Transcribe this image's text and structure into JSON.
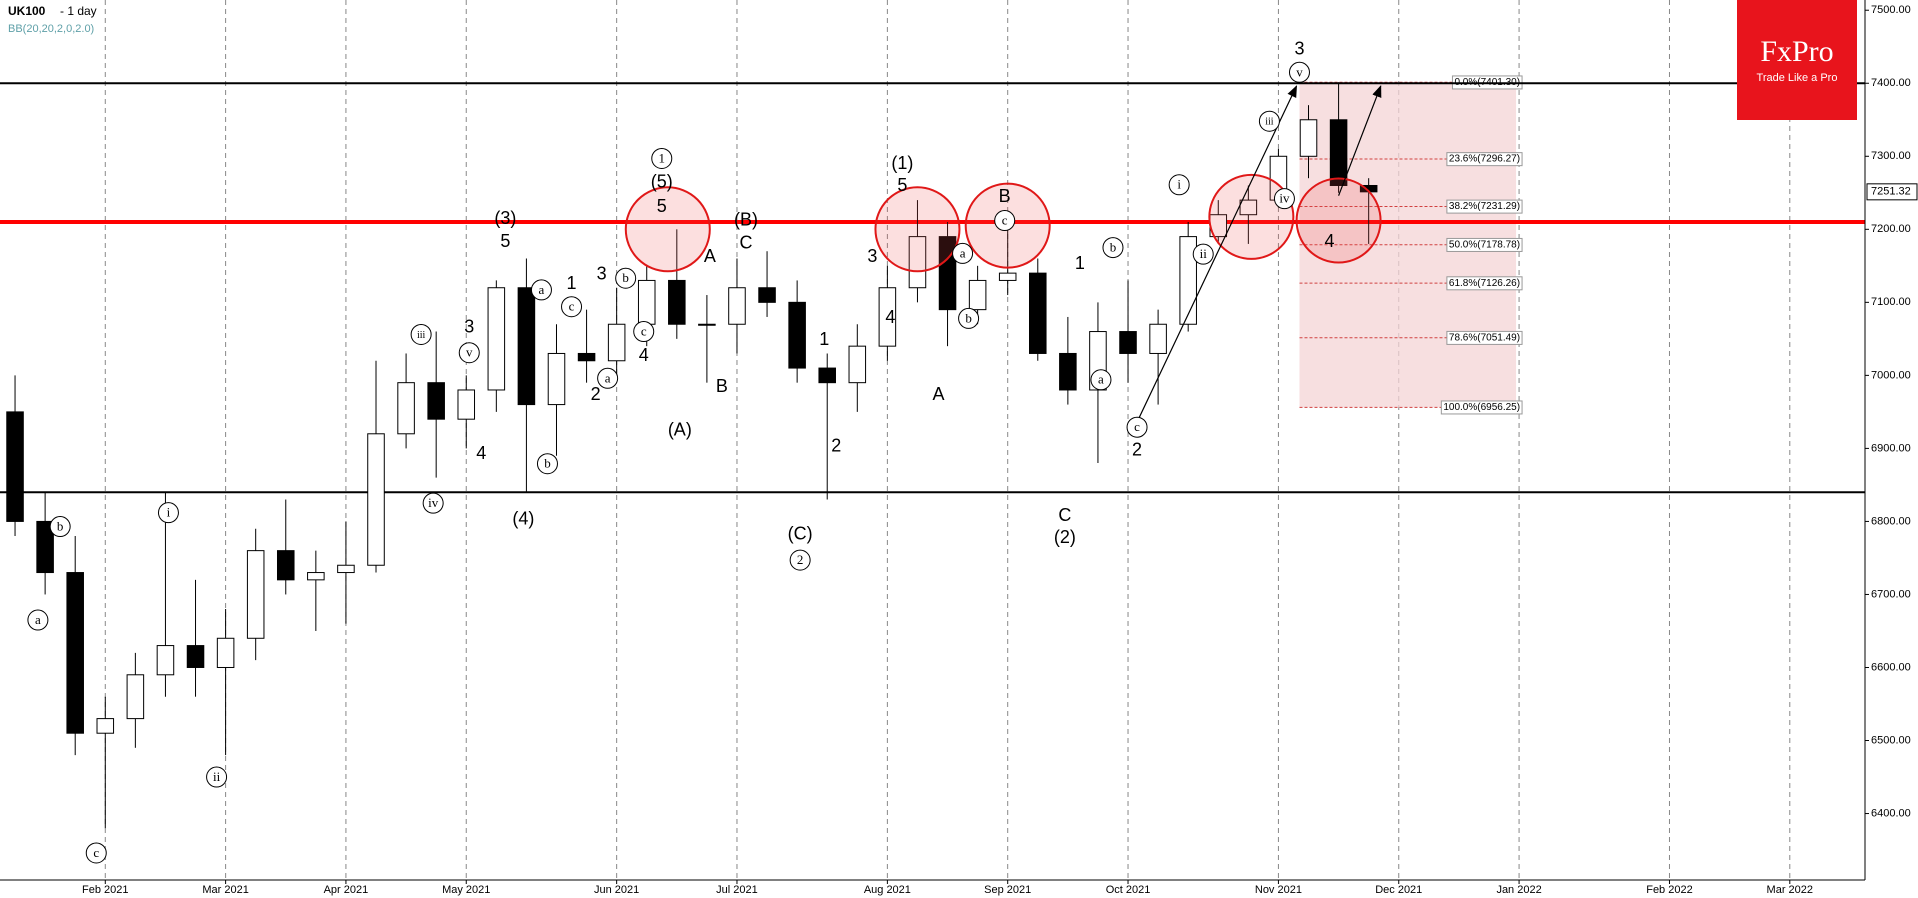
{
  "chart_data": {
    "type": "candlestick",
    "title": "UK100",
    "subtitle": "- 1 day",
    "indicator": "BB(20,20,2,0,2.0)",
    "logo": {
      "brand": "FxPro",
      "tagline": "Trade Like a Pro",
      "color": "#e8141c"
    },
    "categories": [
      null,
      null,
      null,
      "Feb 2021",
      null,
      null,
      null,
      "Mar 2021",
      null,
      null,
      null,
      "Apr 2021",
      null,
      null,
      null,
      "May 2021",
      null,
      null,
      null,
      null,
      "Jun 2021",
      null,
      null,
      null,
      "Jul 2021",
      null,
      null,
      null,
      null,
      "Aug 2021",
      null,
      null,
      null,
      "Sep 2021",
      null,
      null,
      null,
      "Oct 2021",
      null,
      null,
      null,
      null,
      "Nov 2021",
      null,
      null,
      null,
      "Dec 2021",
      null,
      null,
      null,
      "Jan 2022",
      null,
      null,
      null,
      null,
      "Feb 2022",
      null,
      null,
      null,
      "Mar 2022",
      null,
      null
    ],
    "open": [
      6950,
      6800,
      6730,
      6510,
      6530,
      6590,
      6630,
      6600,
      6640,
      6760,
      6720,
      6730,
      6740,
      6920,
      6990,
      6940,
      6980,
      7120,
      6960,
      7030,
      7020,
      7070,
      7130,
      7070,
      7070,
      7120,
      7100,
      7010,
      6990,
      7040,
      7120,
      7190,
      7090,
      7130,
      7140,
      7030,
      6980,
      7060,
      7030,
      7070,
      7190,
      7220,
      7240,
      7300,
      7350,
      7260,
      null,
      null,
      null,
      null,
      null,
      null,
      null,
      null,
      null,
      null,
      null,
      null,
      null,
      null,
      null,
      null
    ],
    "high": [
      7000,
      6840,
      6780,
      6560,
      6620,
      6840,
      6720,
      6680,
      6790,
      6830,
      6760,
      6800,
      7020,
      7030,
      7060,
      7000,
      7130,
      7160,
      7070,
      7090,
      7120,
      7150,
      7200,
      7110,
      7160,
      7170,
      7130,
      7030,
      7070,
      7150,
      7240,
      7210,
      7150,
      7210,
      7160,
      7080,
      7100,
      7130,
      7090,
      7210,
      7240,
      7260,
      7310,
      7370,
      7401.3,
      7270,
      null,
      null,
      null,
      null,
      null,
      null,
      null,
      null,
      null,
      null,
      null,
      null,
      null,
      null,
      null,
      null
    ],
    "low": [
      6780,
      6700,
      6480,
      6380,
      6490,
      6560,
      6560,
      6480,
      6610,
      6700,
      6650,
      6660,
      6730,
      6900,
      6860,
      6900,
      6950,
      6840,
      6890,
      6990,
      7000,
      7040,
      7050,
      6990,
      7030,
      7080,
      6990,
      6830,
      6950,
      7020,
      7100,
      7040,
      7070,
      7110,
      7020,
      6960,
      6880,
      6990,
      6960,
      7060,
      7180,
      7180,
      7230,
      7270,
      7250,
      7180,
      null,
      null,
      null,
      null,
      null,
      null,
      null,
      null,
      null,
      null,
      null,
      null,
      null,
      null,
      null,
      null
    ],
    "close": [
      6800,
      6730,
      6510,
      6530,
      6590,
      6630,
      6600,
      6640,
      6760,
      6720,
      6730,
      6740,
      6920,
      6990,
      6940,
      6980,
      7120,
      6960,
      7030,
      7020,
      7070,
      7130,
      7070,
      7070,
      7120,
      7100,
      7010,
      6990,
      7040,
      7120,
      7190,
      7090,
      7130,
      7140,
      7030,
      6980,
      7060,
      7030,
      7070,
      7190,
      7220,
      7240,
      7300,
      7350,
      7260,
      7251.32,
      null,
      null,
      null,
      null,
      null,
      null,
      null,
      null,
      null,
      null,
      null,
      null,
      null,
      null,
      null,
      null
    ],
    "up_color": "#ffffff",
    "down_color": "#000000",
    "ylim": [
      6309,
      7514
    ],
    "yticks": [
      {
        "value": 6400,
        "label": "6400.00"
      },
      {
        "value": 6500,
        "label": "6500.00"
      },
      {
        "value": 6600,
        "label": "6600.00"
      },
      {
        "value": 6700,
        "label": "6700.00"
      },
      {
        "value": 6800,
        "label": "6800.00"
      },
      {
        "value": 6900,
        "label": "6900.00"
      },
      {
        "value": 7000,
        "label": "7000.00"
      },
      {
        "value": 7100,
        "label": "7100.00"
      },
      {
        "value": 7200,
        "label": "7200.00"
      },
      {
        "value": 7300,
        "label": "7300.00"
      },
      {
        "value": 7400,
        "label": "7400.00"
      },
      {
        "value": 7500,
        "label": "7500.00"
      }
    ],
    "last_price": {
      "value": 7251.32,
      "label": "7251.32"
    },
    "hlines": [
      {
        "value": 7400,
        "color": "#000000"
      },
      {
        "value": 7210,
        "color": "#ff0000"
      },
      {
        "value": 6840,
        "color": "#000000"
      }
    ],
    "fib_range": [
      43.2,
      50.4
    ],
    "fib_levels": [
      {
        "label": "0.0%(7401.30)",
        "value": 7401.3
      },
      {
        "label": "23.6%(7296.27)",
        "value": 7296.27
      },
      {
        "label": "38.2%(7231.29)",
        "value": 7231.29
      },
      {
        "label": "50.0%(7178.78)",
        "value": 7178.78
      },
      {
        "label": "61.8%(7126.26)",
        "value": 7126.26
      },
      {
        "label": "78.6%(7051.49)",
        "value": 7051.49
      },
      {
        "label": "100.0%(6956.25)",
        "value": 6956.25
      }
    ],
    "highlights": [
      {
        "x": 22.2,
        "y": 7200
      },
      {
        "x": 30.5,
        "y": 7200
      },
      {
        "x": 33.5,
        "y": 7205
      },
      {
        "x": 41.6,
        "y": 7217
      },
      {
        "x": 44.5,
        "y": 7212
      }
    ],
    "arrows": [
      {
        "x": [
          37.8,
          43.1
        ],
        "y": [
          6936,
          7396
        ]
      },
      {
        "x": [
          44.5,
          45.9
        ],
        "y": [
          7246,
          7396
        ]
      }
    ],
    "annotations": [
      {
        "text": "a",
        "circled": true,
        "x": 1.26,
        "y": 6665
      },
      {
        "text": "b",
        "circled": true,
        "x": 2.0,
        "y": 6793
      },
      {
        "text": "c",
        "circled": true,
        "x": 3.2,
        "y": 6346
      },
      {
        "text": "i",
        "circled": true,
        "x": 5.6,
        "y": 6812
      },
      {
        "text": "ii",
        "circled": true,
        "x": 7.2,
        "y": 6450
      },
      {
        "text": "iii",
        "circled": true,
        "x": 14.0,
        "y": 7056
      },
      {
        "text": "iv",
        "circled": true,
        "x": 14.4,
        "y": 6825
      },
      {
        "text": "v",
        "circled": true,
        "x": 15.6,
        "y": 7031
      },
      {
        "text": "3",
        "circled": false,
        "x": 15.6,
        "y": 7065
      },
      {
        "text": "4",
        "circled": false,
        "x": 16.0,
        "y": 6892
      },
      {
        "text": "(3)",
        "circled": false,
        "x": 16.8,
        "y": 7214
      },
      {
        "text": "5",
        "circled": false,
        "x": 16.8,
        "y": 7182
      },
      {
        "text": "(4)",
        "circled": false,
        "x": 17.4,
        "y": 6802
      },
      {
        "text": "a",
        "circled": true,
        "x": 18.0,
        "y": 7117
      },
      {
        "text": "b",
        "circled": true,
        "x": 18.2,
        "y": 6879
      },
      {
        "text": "c",
        "circled": true,
        "x": 19.0,
        "y": 7094
      },
      {
        "text": "1",
        "circled": false,
        "x": 19.0,
        "y": 7125
      },
      {
        "text": "2",
        "circled": false,
        "x": 19.8,
        "y": 6973
      },
      {
        "text": "3",
        "circled": false,
        "x": 20.0,
        "y": 7138
      },
      {
        "text": "a",
        "circled": true,
        "x": 20.2,
        "y": 6996
      },
      {
        "text": "b",
        "circled": true,
        "x": 20.8,
        "y": 7133
      },
      {
        "text": "4",
        "circled": false,
        "x": 21.4,
        "y": 7026
      },
      {
        "text": "c",
        "circled": true,
        "x": 21.4,
        "y": 7060
      },
      {
        "text": "1",
        "circled": true,
        "x": 22.0,
        "y": 7297
      },
      {
        "text": "(5)",
        "circled": false,
        "x": 22.0,
        "y": 7264
      },
      {
        "text": "5",
        "circled": false,
        "x": 22.0,
        "y": 7230
      },
      {
        "text": "(A)",
        "circled": false,
        "x": 22.6,
        "y": 6924
      },
      {
        "text": "A",
        "circled": false,
        "x": 23.6,
        "y": 7162
      },
      {
        "text": "B",
        "circled": false,
        "x": 24.0,
        "y": 6984
      },
      {
        "text": "(B)",
        "circled": false,
        "x": 24.8,
        "y": 7212
      },
      {
        "text": "C",
        "circled": false,
        "x": 24.8,
        "y": 7180
      },
      {
        "text": "(C)",
        "circled": false,
        "x": 26.6,
        "y": 6782
      },
      {
        "text": "2",
        "circled": true,
        "x": 26.6,
        "y": 6747
      },
      {
        "text": "1",
        "circled": false,
        "x": 27.4,
        "y": 7048
      },
      {
        "text": "2",
        "circled": false,
        "x": 27.8,
        "y": 6902
      },
      {
        "text": "3",
        "circled": false,
        "x": 29.0,
        "y": 7162
      },
      {
        "text": "4",
        "circled": false,
        "x": 29.6,
        "y": 7078
      },
      {
        "text": "(1)",
        "circled": false,
        "x": 30.0,
        "y": 7289
      },
      {
        "text": "5",
        "circled": false,
        "x": 30.0,
        "y": 7259
      },
      {
        "text": "A",
        "circled": false,
        "x": 31.2,
        "y": 6973
      },
      {
        "text": "a",
        "circled": true,
        "x": 32.0,
        "y": 7167
      },
      {
        "text": "b",
        "circled": true,
        "x": 32.2,
        "y": 7078
      },
      {
        "text": "B",
        "circled": false,
        "x": 33.4,
        "y": 7244
      },
      {
        "text": "c",
        "circled": true,
        "x": 33.4,
        "y": 7212
      },
      {
        "text": "1",
        "circled": false,
        "x": 35.9,
        "y": 7152
      },
      {
        "text": "C",
        "circled": false,
        "x": 35.4,
        "y": 6807
      },
      {
        "text": "(2)",
        "circled": false,
        "x": 35.4,
        "y": 6777
      },
      {
        "text": "b",
        "circled": true,
        "x": 37.0,
        "y": 7175
      },
      {
        "text": "a",
        "circled": true,
        "x": 36.6,
        "y": 6994
      },
      {
        "text": "c",
        "circled": true,
        "x": 37.8,
        "y": 6929
      },
      {
        "text": "2",
        "circled": false,
        "x": 37.8,
        "y": 6897
      },
      {
        "text": "i",
        "circled": true,
        "x": 39.2,
        "y": 7261
      },
      {
        "text": "ii",
        "circled": true,
        "x": 40.0,
        "y": 7166
      },
      {
        "text": "iii",
        "circled": true,
        "x": 42.2,
        "y": 7348
      },
      {
        "text": "iv",
        "circled": true,
        "x": 42.7,
        "y": 7242
      },
      {
        "text": "v",
        "circled": true,
        "x": 43.2,
        "y": 7415
      },
      {
        "text": "3",
        "circled": false,
        "x": 43.2,
        "y": 7446
      },
      {
        "text": "4",
        "circled": false,
        "x": 44.2,
        "y": 7182
      }
    ]
  }
}
